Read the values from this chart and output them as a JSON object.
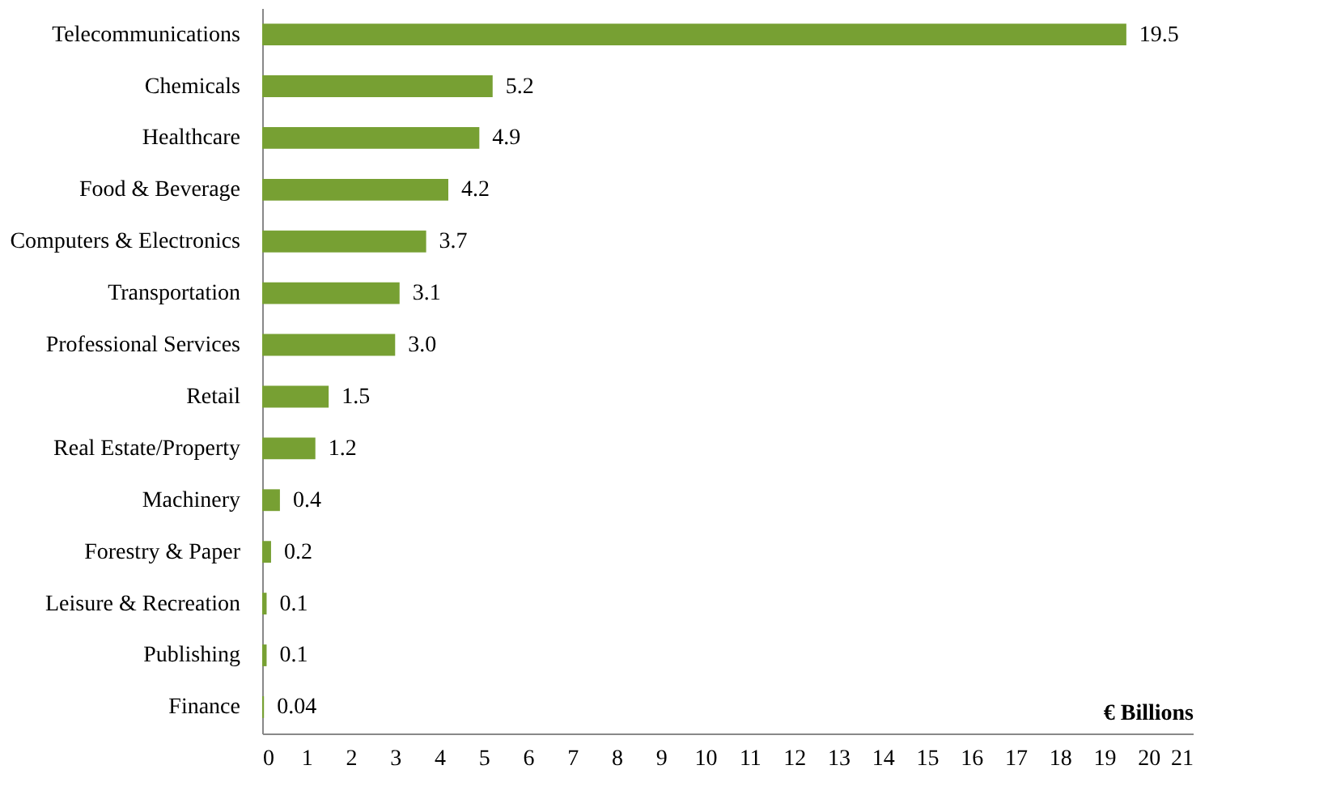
{
  "chart_data": {
    "type": "bar",
    "orientation": "horizontal",
    "xlabel": "€ Billions",
    "categories": [
      "Telecommunications",
      "Chemicals",
      "Healthcare",
      "Food & Beverage",
      "Computers & Electronics",
      "Transportation",
      "Professional Services",
      "Retail",
      "Real Estate/Property",
      "Machinery",
      "Forestry & Paper",
      "Leisure & Recreation",
      "Publishing",
      "Finance"
    ],
    "values": [
      19.5,
      5.2,
      4.9,
      4.2,
      3.7,
      3.1,
      3.0,
      1.5,
      1.2,
      0.4,
      0.2,
      0.1,
      0.1,
      0.04
    ],
    "value_labels": [
      "19.5",
      "5.2",
      "4.9",
      "4.2",
      "3.7",
      "3.1",
      "3.0",
      "1.5",
      "1.2",
      "0.4",
      "0.2",
      "0.1",
      "0.1",
      "0.04"
    ],
    "color": "#77a033",
    "xlim": [
      0,
      21
    ],
    "xticks": [
      0,
      1,
      2,
      3,
      4,
      5,
      6,
      7,
      8,
      9,
      10,
      11,
      12,
      13,
      14,
      15,
      16,
      17,
      18,
      19,
      20,
      21
    ],
    "grid": false
  }
}
